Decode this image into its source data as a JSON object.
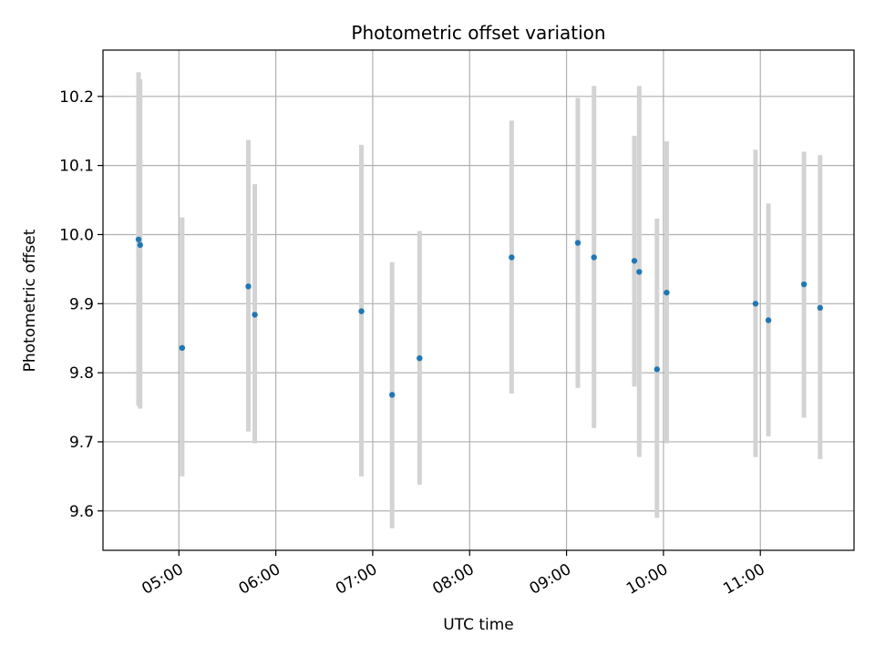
{
  "chart_data": {
    "type": "scatter",
    "title": "Photometric offset variation",
    "xlabel": "UTC time",
    "ylabel": "Photometric offset",
    "xlim": [
      "04:13",
      "11:58"
    ],
    "ylim": [
      9.543,
      10.267
    ],
    "x_ticks": [
      "05:00",
      "06:00",
      "07:00",
      "08:00",
      "09:00",
      "10:00",
      "11:00"
    ],
    "y_ticks": [
      9.6,
      9.7,
      9.8,
      9.9,
      10.0,
      10.1,
      10.2
    ],
    "grid": true,
    "colors": {
      "point": "#1f77b4",
      "errorbar": "#d3d3d3",
      "grid": "#b0b0b0"
    },
    "points": [
      {
        "x": "04:35",
        "y": 9.993,
        "low": 9.752,
        "high": 10.235
      },
      {
        "x": "04:36",
        "y": 9.985,
        "low": 9.748,
        "high": 10.225
      },
      {
        "x": "05:02",
        "y": 9.836,
        "low": 9.65,
        "high": 10.025
      },
      {
        "x": "05:43",
        "y": 9.925,
        "low": 9.715,
        "high": 10.137
      },
      {
        "x": "05:47",
        "y": 9.884,
        "low": 9.698,
        "high": 10.073
      },
      {
        "x": "06:53",
        "y": 9.889,
        "low": 9.65,
        "high": 10.13
      },
      {
        "x": "07:12",
        "y": 9.768,
        "low": 9.575,
        "high": 9.96
      },
      {
        "x": "07:29",
        "y": 9.821,
        "low": 9.638,
        "high": 10.005
      },
      {
        "x": "08:26",
        "y": 9.967,
        "low": 9.77,
        "high": 10.165
      },
      {
        "x": "09:07",
        "y": 9.988,
        "low": 9.778,
        "high": 10.198
      },
      {
        "x": "09:17",
        "y": 9.967,
        "low": 9.72,
        "high": 10.215
      },
      {
        "x": "09:42",
        "y": 9.962,
        "low": 9.78,
        "high": 10.143
      },
      {
        "x": "09:45",
        "y": 9.946,
        "low": 9.678,
        "high": 10.215
      },
      {
        "x": "09:56",
        "y": 9.805,
        "low": 9.59,
        "high": 10.023
      },
      {
        "x": "10:02",
        "y": 9.916,
        "low": 9.698,
        "high": 10.135
      },
      {
        "x": "10:57",
        "y": 9.9,
        "low": 9.678,
        "high": 10.123
      },
      {
        "x": "11:05",
        "y": 9.876,
        "low": 9.708,
        "high": 10.045
      },
      {
        "x": "11:27",
        "y": 9.928,
        "low": 9.735,
        "high": 10.12
      },
      {
        "x": "11:37",
        "y": 9.894,
        "low": 9.675,
        "high": 10.115
      }
    ]
  }
}
